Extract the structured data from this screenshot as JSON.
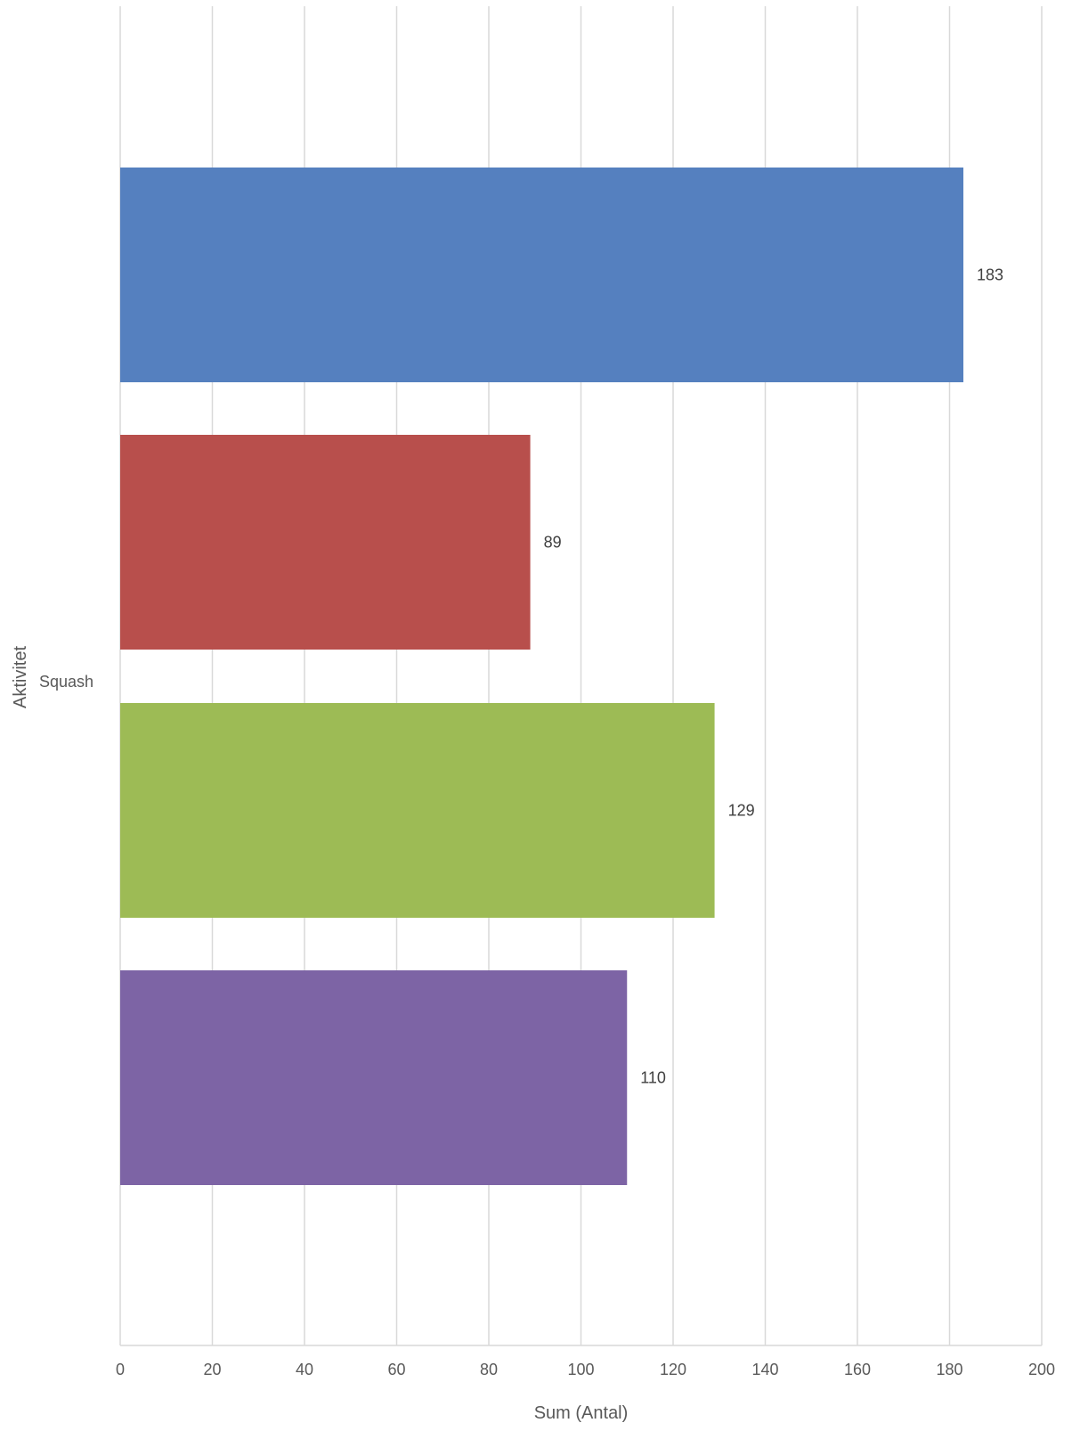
{
  "chart_data": {
    "type": "bar",
    "orientation": "horizontal",
    "category_label": "Squash",
    "series": [
      {
        "value": 183,
        "color": "#5580BF"
      },
      {
        "value": 89,
        "color": "#B84F4C"
      },
      {
        "value": 129,
        "color": "#9DBB55"
      },
      {
        "value": 110,
        "color": "#7D64A5"
      }
    ],
    "xlabel": "Sum (Antal)",
    "ylabel": "Aktivitet",
    "xlim": [
      0,
      200
    ],
    "xticks": [
      0,
      20,
      40,
      60,
      80,
      100,
      120,
      140,
      160,
      180,
      200
    ],
    "grid": true,
    "legend": "none"
  }
}
